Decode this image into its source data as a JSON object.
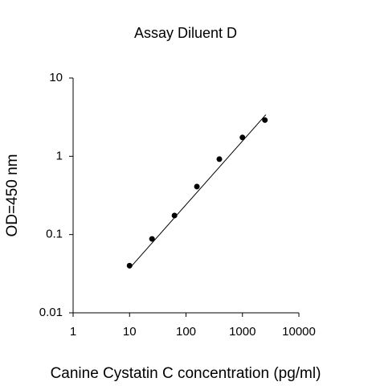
{
  "chart_data": {
    "type": "scatter",
    "title": "Assay Diluent D",
    "x_label": "Canine Cystatin C concentration (pg/ml)",
    "y_label": "OD=450 nm",
    "x_scale": "log",
    "y_scale": "log",
    "xlim": [
      1,
      10000
    ],
    "xticks": [
      1,
      10,
      100,
      1000,
      10000
    ],
    "ylim": [
      0.01,
      10
    ],
    "yticks": [
      0.01,
      0.1,
      1,
      10
    ],
    "grid": false,
    "series": [
      {
        "style": "marker",
        "color": "#000000",
        "x": [
          10,
          25,
          62.5,
          156,
          390,
          1000,
          2500
        ],
        "values": [
          0.04,
          0.088,
          0.175,
          0.41,
          0.92,
          1.74,
          2.9
        ]
      },
      {
        "style": "line",
        "color": "#000000",
        "x": [
          10,
          2600
        ],
        "values": [
          0.037,
          3.4
        ]
      }
    ]
  }
}
